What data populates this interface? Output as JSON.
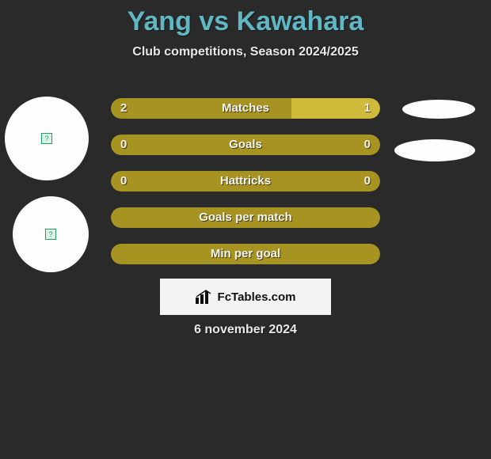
{
  "title": "Yang vs Kawahara",
  "subtitle": "Club competitions, Season 2024/2025",
  "date": "6 november 2024",
  "badge_text": "FcTables.com",
  "colors": {
    "background": "#2a2a2a",
    "title": "#5fb8c4",
    "bar_primary": "#a79321",
    "bar_secondary": "#d0ba3a",
    "ellipse": "#fefefe",
    "avatar_bg": "#fefefe",
    "badge_bg": "#f3f3f3",
    "text_light": "#f0f0f0"
  },
  "bars": [
    {
      "label": "Matches",
      "left": "2",
      "right": "1",
      "left_pct": 67,
      "right_pct": 33
    },
    {
      "label": "Goals",
      "left": "0",
      "right": "0",
      "left_pct": 100,
      "right_pct": 0
    },
    {
      "label": "Hattricks",
      "left": "0",
      "right": "0",
      "left_pct": 100,
      "right_pct": 0
    },
    {
      "label": "Goals per match",
      "left": "",
      "right": "",
      "left_pct": 100,
      "right_pct": 0
    },
    {
      "label": "Min per goal",
      "left": "",
      "right": "",
      "left_pct": 100,
      "right_pct": 0
    }
  ]
}
